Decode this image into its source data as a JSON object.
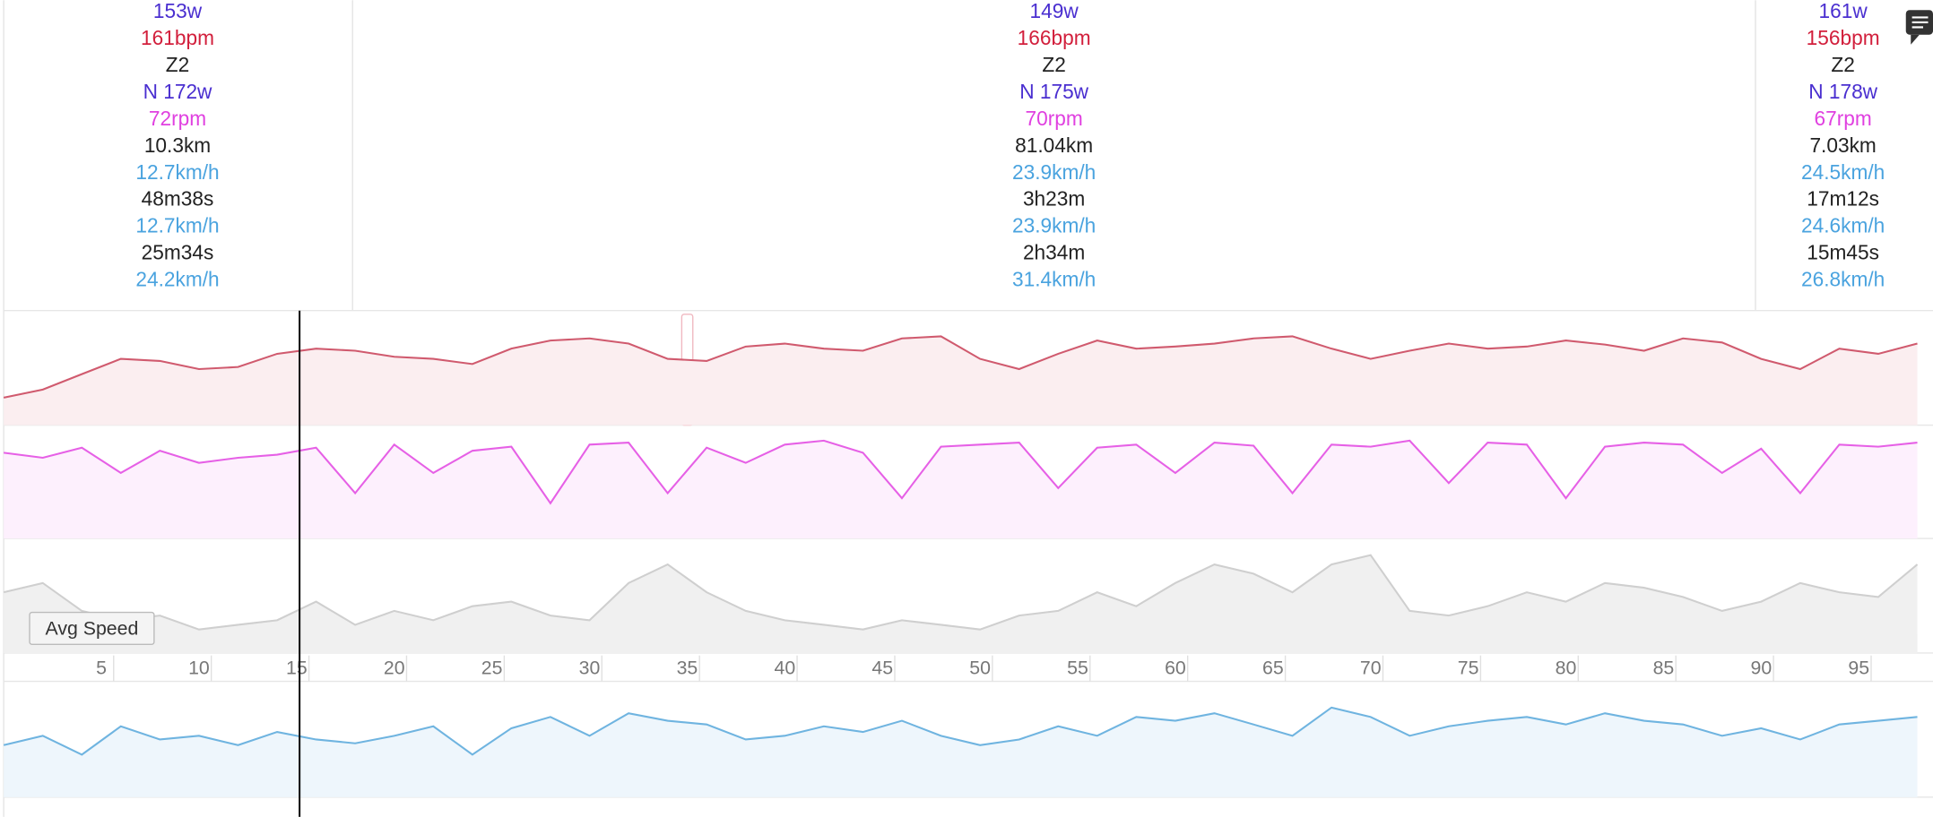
{
  "stats": {
    "line_colors": [
      "#4a2fd0",
      "#d21f3c",
      "#222222",
      "#4a2fd0",
      "#e040e0",
      "#222222",
      "#4aa3df",
      "#222222",
      "#4aa3df",
      "#222222",
      "#4aa3df"
    ],
    "columns": [
      [
        "153w",
        "161bpm",
        "Z2",
        "N 172w",
        "72rpm",
        "10.3km",
        "12.7km/h",
        "48m38s",
        "12.7km/h",
        "25m34s",
        "24.2km/h"
      ],
      [
        "149w",
        "166bpm",
        "Z2",
        "N 175w",
        "70rpm",
        "81.04km",
        "23.9km/h",
        "3h23m",
        "23.9km/h",
        "2h34m",
        "31.4km/h"
      ],
      [
        "161w",
        "156bpm",
        "Z2",
        "N 178w",
        "67rpm",
        "7.03km",
        "24.5km/h",
        "17m12s",
        "24.6km/h",
        "15m45s",
        "26.8km/h"
      ]
    ]
  },
  "tooltip": "Avg Speed",
  "chart": {
    "xlim": [
      0,
      98.8
    ],
    "xticks": [
      5,
      10,
      15,
      20,
      25,
      30,
      35,
      40,
      45,
      50,
      55,
      60,
      65,
      70,
      75,
      80,
      85,
      90,
      95
    ],
    "x": [
      0,
      2,
      4,
      6,
      8,
      10,
      12,
      14,
      16,
      18,
      20,
      22,
      24,
      26,
      28,
      30,
      32,
      34,
      36,
      38,
      40,
      42,
      44,
      46,
      48,
      50,
      52,
      54,
      56,
      58,
      60,
      62,
      64,
      66,
      68,
      70,
      72,
      74,
      76,
      78,
      80,
      82,
      84,
      86,
      88,
      90,
      92,
      94,
      96,
      98
    ],
    "series": [
      {
        "color": "#d05a6e",
        "fill": "#fbeef0",
        "ylim": [
          90,
          190
        ],
        "values": [
          112,
          120,
          135,
          150,
          148,
          140,
          142,
          155,
          160,
          158,
          152,
          150,
          145,
          160,
          168,
          170,
          165,
          150,
          148,
          162,
          165,
          160,
          158,
          170,
          172,
          150,
          140,
          155,
          168,
          160,
          162,
          165,
          170,
          172,
          160,
          150,
          158,
          165,
          160,
          162,
          168,
          164,
          158,
          170,
          166,
          150,
          140,
          160,
          155,
          165
        ]
      },
      {
        "color": "#e660e6",
        "fill": "#fdf0fd",
        "ylim": [
          0,
          100
        ],
        "values": [
          80,
          75,
          85,
          60,
          82,
          70,
          75,
          78,
          85,
          40,
          88,
          60,
          82,
          86,
          30,
          88,
          90,
          40,
          85,
          70,
          88,
          92,
          80,
          35,
          86,
          88,
          90,
          45,
          85,
          88,
          60,
          90,
          87,
          40,
          88,
          86,
          92,
          50,
          90,
          88,
          35,
          86,
          90,
          88,
          60,
          84,
          40,
          88,
          86,
          90
        ]
      },
      {
        "color": "#cfcfcf",
        "fill": "#f0f0f0",
        "ylim": [
          0,
          110
        ],
        "values": [
          60,
          70,
          40,
          30,
          35,
          20,
          25,
          30,
          50,
          25,
          40,
          30,
          45,
          50,
          35,
          30,
          70,
          90,
          60,
          40,
          30,
          25,
          20,
          30,
          25,
          20,
          35,
          40,
          60,
          45,
          70,
          90,
          80,
          60,
          90,
          100,
          40,
          35,
          45,
          60,
          50,
          70,
          65,
          55,
          40,
          50,
          70,
          60,
          55,
          90
        ]
      },
      {
        "color": "#6fb4e0",
        "fill": "#eef6fc",
        "ylim": [
          0,
          55
        ],
        "values": [
          25,
          30,
          20,
          35,
          28,
          30,
          25,
          32,
          28,
          26,
          30,
          35,
          20,
          34,
          40,
          30,
          42,
          38,
          36,
          28,
          30,
          35,
          32,
          38,
          30,
          25,
          28,
          35,
          30,
          40,
          38,
          42,
          36,
          30,
          45,
          40,
          30,
          35,
          38,
          40,
          36,
          42,
          38,
          36,
          30,
          34,
          28,
          36,
          38,
          40
        ]
      }
    ]
  }
}
